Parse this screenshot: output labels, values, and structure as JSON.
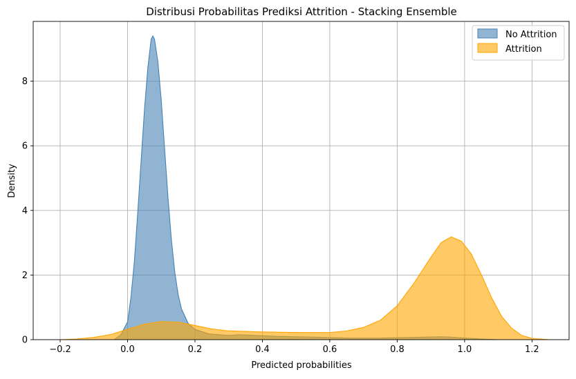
{
  "chart_data": {
    "type": "area",
    "title": "Distribusi Probabilitas Prediksi Attrition - Stacking Ensemble",
    "xlabel": "Predicted probabilities",
    "ylabel": "Density",
    "xlim": [
      -0.28,
      1.31
    ],
    "ylim": [
      0,
      9.85
    ],
    "x_ticks": [
      -0.2,
      0.0,
      0.2,
      0.4,
      0.6,
      0.8,
      1.0,
      1.2
    ],
    "x_tick_labels": [
      "−0.2",
      "0.0",
      "0.2",
      "0.4",
      "0.6",
      "0.8",
      "1.0",
      "1.2"
    ],
    "y_ticks": [
      0,
      2,
      4,
      6,
      8
    ],
    "y_tick_labels": [
      "0",
      "2",
      "4",
      "6",
      "8"
    ],
    "grid": true,
    "legend_position": "top-right",
    "series": [
      {
        "name": "No Attrition",
        "fill_color": "#4682b4",
        "line_color": "#4682b4",
        "points": [
          [
            -0.04,
            0.0
          ],
          [
            -0.02,
            0.15
          ],
          [
            0.0,
            0.55
          ],
          [
            0.01,
            1.3
          ],
          [
            0.02,
            2.4
          ],
          [
            0.03,
            3.9
          ],
          [
            0.04,
            5.5
          ],
          [
            0.05,
            7.1
          ],
          [
            0.06,
            8.4
          ],
          [
            0.07,
            9.3
          ],
          [
            0.075,
            9.4
          ],
          [
            0.08,
            9.3
          ],
          [
            0.09,
            8.6
          ],
          [
            0.1,
            7.4
          ],
          [
            0.11,
            5.9
          ],
          [
            0.12,
            4.4
          ],
          [
            0.13,
            3.1
          ],
          [
            0.14,
            2.1
          ],
          [
            0.15,
            1.4
          ],
          [
            0.16,
            0.95
          ],
          [
            0.18,
            0.5
          ],
          [
            0.2,
            0.32
          ],
          [
            0.24,
            0.18
          ],
          [
            0.3,
            0.13
          ],
          [
            0.33,
            0.15
          ],
          [
            0.38,
            0.13
          ],
          [
            0.45,
            0.1
          ],
          [
            0.55,
            0.08
          ],
          [
            0.65,
            0.05
          ],
          [
            0.75,
            0.05
          ],
          [
            0.85,
            0.07
          ],
          [
            0.93,
            0.09
          ],
          [
            0.96,
            0.08
          ],
          [
            1.0,
            0.05
          ],
          [
            1.05,
            0.02
          ],
          [
            1.1,
            0.0
          ]
        ]
      },
      {
        "name": "Attrition",
        "fill_color": "#ffa500",
        "line_color": "#ffa500",
        "points": [
          [
            -0.2,
            0.0
          ],
          [
            -0.15,
            0.02
          ],
          [
            -0.1,
            0.07
          ],
          [
            -0.05,
            0.16
          ],
          [
            0.0,
            0.32
          ],
          [
            0.05,
            0.48
          ],
          [
            0.1,
            0.56
          ],
          [
            0.15,
            0.54
          ],
          [
            0.2,
            0.44
          ],
          [
            0.25,
            0.33
          ],
          [
            0.3,
            0.27
          ],
          [
            0.4,
            0.24
          ],
          [
            0.5,
            0.22
          ],
          [
            0.6,
            0.22
          ],
          [
            0.65,
            0.27
          ],
          [
            0.7,
            0.38
          ],
          [
            0.75,
            0.6
          ],
          [
            0.8,
            1.05
          ],
          [
            0.85,
            1.75
          ],
          [
            0.9,
            2.55
          ],
          [
            0.93,
            3.0
          ],
          [
            0.96,
            3.18
          ],
          [
            0.99,
            3.05
          ],
          [
            1.02,
            2.65
          ],
          [
            1.05,
            2.0
          ],
          [
            1.08,
            1.3
          ],
          [
            1.11,
            0.72
          ],
          [
            1.14,
            0.35
          ],
          [
            1.17,
            0.13
          ],
          [
            1.2,
            0.04
          ],
          [
            1.25,
            0.0
          ]
        ]
      }
    ]
  }
}
